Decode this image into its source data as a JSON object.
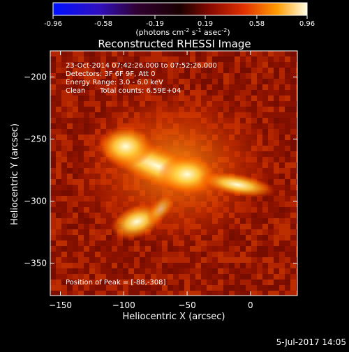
{
  "colorbar": {
    "ticks": [
      "-0.96",
      "-0.58",
      "-0.19",
      "0.19",
      "0.58",
      "0.96"
    ],
    "tick_values": [
      -0.96,
      -0.58,
      -0.19,
      0.19,
      0.58,
      0.96
    ],
    "range": [
      -0.96,
      0.96
    ],
    "units_prefix": "(photons cm",
    "units_exp1": "-2",
    "units_mid": " s",
    "units_exp2": "-1",
    "units_mid2": " asec",
    "units_exp3": "-2",
    "units_suffix": ")"
  },
  "title": "Reconstructed RHESSI Image",
  "annotations": {
    "time_range": "23-Oct-2014 07:42:26.000 to 07:52:26.000",
    "detectors": "Detectors: 3F 6F 9F, Att 0",
    "energy_range": "Energy Range: 3.0 - 6.0 keV",
    "method": "Clean",
    "total_counts": "Total counts: 6.59E+04",
    "peak_position": "Position of Peak = [-88,-308]"
  },
  "footer_date": "5-Jul-2017 14:05",
  "colors": {
    "background": "#000000",
    "map_dark": "#8a0f00",
    "map_mid": "#e04a00",
    "map_bright": "#ffffe0"
  },
  "chart_data": {
    "type": "heatmap",
    "title": "Reconstructed RHESSI Image",
    "xlabel": "Heliocentric X (arcsec)",
    "ylabel": "Heliocentric Y (arcsec)",
    "xlim": [
      -158,
      37
    ],
    "ylim": [
      -376,
      -179
    ],
    "x_ticks": [
      -150,
      -100,
      -50,
      0
    ],
    "x_tick_labels": [
      "−150",
      "−100",
      "−50",
      "0"
    ],
    "y_ticks": [
      -200,
      -250,
      -300,
      -350
    ],
    "y_tick_labels": [
      "−200",
      "−250",
      "−300",
      "−350"
    ],
    "color_range": [
      -0.96,
      0.96
    ],
    "colormap": "red-temperature (blue-purple for negative, red-yellow-white for positive)",
    "peak": {
      "x": -88,
      "y": -308
    }
  }
}
